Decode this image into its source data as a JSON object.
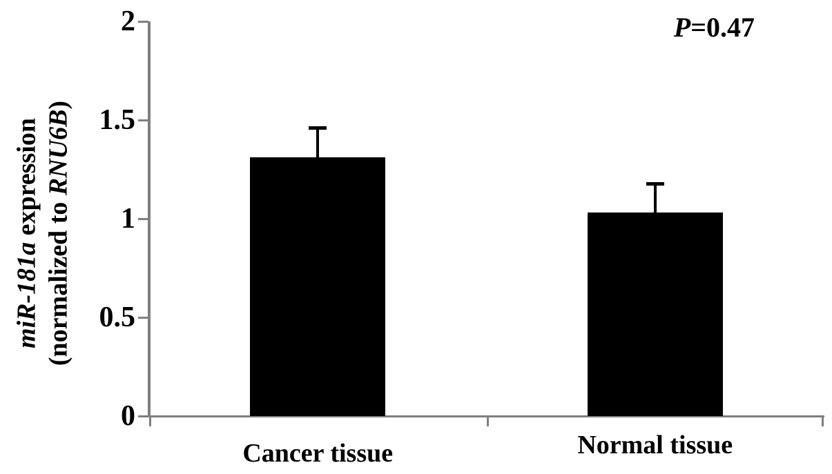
{
  "figure": {
    "background": "#ffffff",
    "annotation": {
      "segments": [
        {
          "text": "P",
          "italic": true
        },
        {
          "text": "=0.47",
          "italic": false
        }
      ]
    },
    "y_axis_title": {
      "lines": [
        {
          "segments": [
            {
              "text": "miR-181a",
              "italic": true
            },
            {
              "text": " expression",
              "italic": false
            }
          ]
        },
        {
          "segments": [
            {
              "text": "(normalized to ",
              "italic": false
            },
            {
              "text": "RNU6B",
              "italic": true
            },
            {
              "text": ")",
              "italic": false
            }
          ]
        }
      ]
    }
  },
  "chart_data": {
    "type": "bar",
    "title": "",
    "xlabel": "",
    "ylabel": "miR-181a expression (normalized to RNU6B)",
    "categories": [
      "Cancer tissue",
      "Normal tissue"
    ],
    "values": [
      1.31,
      1.03
    ],
    "errors_plus": [
      0.15,
      0.15
    ],
    "ylim": [
      0,
      2
    ],
    "yticks": [
      0,
      0.5,
      1,
      1.5,
      2
    ],
    "ytick_labels": [
      "0",
      "0.5",
      "1",
      "1.5",
      "2"
    ],
    "annotation": "P=0.47",
    "bar_color": "#000000",
    "axis_color": "#7f7f7f",
    "text_color": "#000000",
    "grid": false,
    "legend": "none",
    "error_bar_direction": "plus-only"
  }
}
